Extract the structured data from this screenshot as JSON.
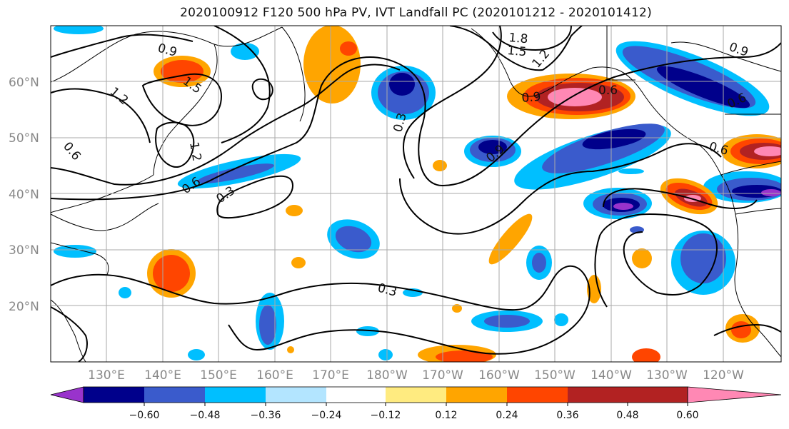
{
  "title": "2020100912 F120 500 hPa PV, IVT Landfall PC (2020101212 - 2020101412)",
  "map": {
    "lat_labels": [
      "60°N",
      "50°N",
      "40°N",
      "30°N",
      "20°N"
    ],
    "lon_labels": [
      "130°E",
      "140°E",
      "150°E",
      "160°E",
      "170°E",
      "180°W",
      "170°W",
      "160°W",
      "150°W",
      "140°W",
      "130°W",
      "120°W"
    ],
    "contour_labels": [
      "0.9",
      "1.5",
      "1.2",
      "0.6",
      "1.2",
      "0.6",
      "0.3",
      "1.8",
      "1.5",
      "1.2",
      "0.9",
      "0.6",
      "0.9",
      "0.3",
      "0.9",
      "0.6",
      "0.6",
      "0.3"
    ],
    "contour_levels": [
      0.3,
      0.6,
      0.9,
      1.2,
      1.5,
      1.8
    ]
  },
  "colorbar": {
    "tick_labels": [
      "−0.60",
      "−0.48",
      "−0.36",
      "−0.24",
      "−0.12",
      "0.12",
      "0.24",
      "0.36",
      "0.48",
      "0.60"
    ],
    "colors": [
      "#9933cc",
      "#00008b",
      "#3a5bcc",
      "#00bfff",
      "#b3e5ff",
      "#ffffff",
      "#ffeb80",
      "#ffa500",
      "#ff4500",
      "#b22222",
      "#ff88b4"
    ]
  }
}
